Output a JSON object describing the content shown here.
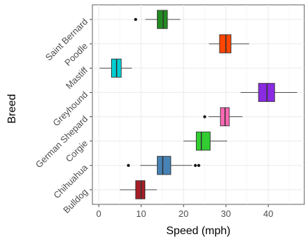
{
  "chart_data": {
    "type": "boxplot",
    "orientation": "horizontal",
    "xlabel": "Speed (mph)",
    "ylabel": "Breed",
    "xlim": [
      -1.5,
      48.5
    ],
    "xticks": [
      0,
      10,
      20,
      30,
      40
    ],
    "x_minor_ticks": [
      5,
      15,
      25,
      35,
      45
    ],
    "grid": true,
    "legend": "none",
    "categories": [
      "Bulldog",
      "Chihuahua",
      "Corgie",
      "German Shepard",
      "Greyhound",
      "Mastiff",
      "Poodle",
      "Saint Bernard"
    ],
    "boxes": [
      {
        "category": "Bulldog",
        "whisker_low": 5,
        "q1": 8.7,
        "median": 10,
        "q3": 10.9,
        "whisker_high": 13.7,
        "outliers": [],
        "color": "#A61E27"
      },
      {
        "category": "Chihuahua",
        "whisker_low": 9.8,
        "q1": 13.8,
        "median": 15.1,
        "q3": 17,
        "whisker_high": 22,
        "outliers": [
          7,
          22.8,
          23.6
        ],
        "color": "#4682B4"
      },
      {
        "category": "Corgie",
        "whisker_low": 20,
        "q1": 23,
        "median": 24.2,
        "q3": 26.3,
        "whisker_high": 30.3,
        "outliers": [],
        "color": "#32CD32"
      },
      {
        "category": "German Shepard",
        "whisker_low": 25.9,
        "q1": 28.7,
        "median": 29.8,
        "q3": 30.8,
        "whisker_high": 33.9,
        "outliers": [
          25
        ],
        "color": "#FF69B4"
      },
      {
        "category": "Greyhound",
        "whisker_low": 33.5,
        "q1": 37.7,
        "median": 39.7,
        "q3": 41.5,
        "whisker_high": 46.8,
        "outliers": [],
        "color": "#8A2BE2"
      },
      {
        "category": "Mastiff",
        "whisker_low": 0.2,
        "q1": 3,
        "median": 4.2,
        "q3": 5.3,
        "whisker_high": 7.8,
        "outliers": [],
        "color": "#00CED1"
      },
      {
        "category": "Poodle",
        "whisker_low": 26,
        "q1": 28.5,
        "median": 30,
        "q3": 31.2,
        "whisker_high": 35.5,
        "outliers": [],
        "color": "#FF4500"
      },
      {
        "category": "Saint Bernard",
        "whisker_low": 11,
        "q1": 13.8,
        "median": 15.2,
        "q3": 16.2,
        "whisker_high": 19.2,
        "outliers": [
          8.7
        ],
        "color": "#228B22"
      }
    ]
  }
}
